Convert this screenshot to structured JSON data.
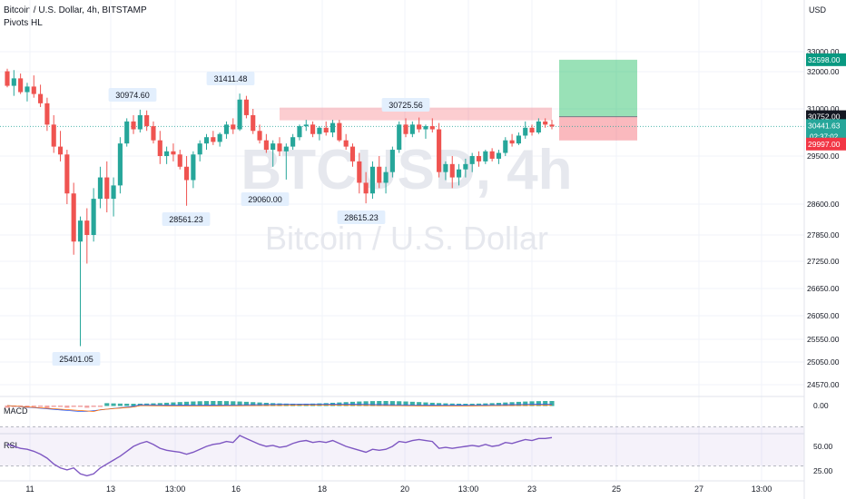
{
  "header": {
    "title": "Bitcoin / U.S. Dollar, 4h, BITSTAMP",
    "indicator": "Pivots HL"
  },
  "watermark": {
    "symbol": "BTCUSD, 4h",
    "name": "Bitcoin / U.S. Dollar"
  },
  "currency": "USD",
  "colors": {
    "up": "#26a69a",
    "down": "#ef5350",
    "macd": "#2962ff",
    "signal": "#ff6d00",
    "rsi": "#7e57c2",
    "profit": "#00b34a",
    "loss": "#f23645"
  },
  "chart_data": {
    "type": "candlestick",
    "y_ticks": [
      33000,
      32000,
      31000,
      29500,
      28600,
      27850,
      27250,
      26650,
      26050,
      25550,
      25050,
      24570
    ],
    "x_ticks": [
      "11",
      "13",
      "13:00",
      "16",
      "18",
      "20",
      "13:00",
      "23",
      "25",
      "27",
      "13:00"
    ],
    "pivots": [
      {
        "label": "30974.60",
        "kind": "high"
      },
      {
        "label": "31411.48",
        "kind": "high"
      },
      {
        "label": "30725.56",
        "kind": "high"
      },
      {
        "label": "28561.23",
        "kind": "low"
      },
      {
        "label": "29060.00",
        "kind": "low"
      },
      {
        "label": "28615.23",
        "kind": "low"
      },
      {
        "label": "25401.05",
        "kind": "low"
      }
    ],
    "price_labels": {
      "target": "32598.00",
      "entry": "30752.00",
      "last": "30441.63",
      "countdown": "02:37:02",
      "stop": "29997.00"
    },
    "candles": [
      {
        "o": 32020,
        "h": 32150,
        "l": 31580,
        "c": 31620
      },
      {
        "o": 31620,
        "h": 32080,
        "l": 31350,
        "c": 31820
      },
      {
        "o": 31820,
        "h": 31950,
        "l": 31400,
        "c": 31450
      },
      {
        "o": 31450,
        "h": 31700,
        "l": 31200,
        "c": 31600
      },
      {
        "o": 31600,
        "h": 31900,
        "l": 31300,
        "c": 31400
      },
      {
        "o": 31400,
        "h": 31650,
        "l": 31050,
        "c": 31150
      },
      {
        "o": 31150,
        "h": 31300,
        "l": 30300,
        "c": 30500
      },
      {
        "o": 30500,
        "h": 30800,
        "l": 29600,
        "c": 29800
      },
      {
        "o": 29800,
        "h": 30300,
        "l": 29400,
        "c": 29550
      },
      {
        "o": 29550,
        "h": 29700,
        "l": 28600,
        "c": 28800
      },
      {
        "o": 28800,
        "h": 29000,
        "l": 27400,
        "c": 27700
      },
      {
        "o": 27700,
        "h": 28300,
        "l": 25401,
        "c": 28200
      },
      {
        "o": 28200,
        "h": 28500,
        "l": 27200,
        "c": 27850
      },
      {
        "o": 27850,
        "h": 28900,
        "l": 27700,
        "c": 28700
      },
      {
        "o": 28700,
        "h": 29300,
        "l": 28500,
        "c": 29100
      },
      {
        "o": 29100,
        "h": 29400,
        "l": 28400,
        "c": 28700
      },
      {
        "o": 28700,
        "h": 29100,
        "l": 28300,
        "c": 28950
      },
      {
        "o": 28950,
        "h": 30100,
        "l": 28800,
        "c": 29900
      },
      {
        "o": 29900,
        "h": 30700,
        "l": 29800,
        "c": 30600
      },
      {
        "o": 30600,
        "h": 30800,
        "l": 30200,
        "c": 30350
      },
      {
        "o": 30350,
        "h": 30974,
        "l": 30250,
        "c": 30800
      },
      {
        "o": 30800,
        "h": 30950,
        "l": 30300,
        "c": 30450
      },
      {
        "o": 30450,
        "h": 30600,
        "l": 29900,
        "c": 30000
      },
      {
        "o": 30000,
        "h": 30300,
        "l": 29350,
        "c": 29500
      },
      {
        "o": 29500,
        "h": 29800,
        "l": 29350,
        "c": 29650
      },
      {
        "o": 29650,
        "h": 29900,
        "l": 29400,
        "c": 29550
      },
      {
        "o": 29550,
        "h": 29700,
        "l": 29250,
        "c": 29300
      },
      {
        "o": 29300,
        "h": 29500,
        "l": 28561,
        "c": 29050
      },
      {
        "o": 29050,
        "h": 29650,
        "l": 28900,
        "c": 29550
      },
      {
        "o": 29550,
        "h": 30000,
        "l": 29400,
        "c": 29900
      },
      {
        "o": 29900,
        "h": 30200,
        "l": 29700,
        "c": 30100
      },
      {
        "o": 30100,
        "h": 30300,
        "l": 29850,
        "c": 29950
      },
      {
        "o": 29950,
        "h": 30250,
        "l": 29800,
        "c": 30200
      },
      {
        "o": 30200,
        "h": 30600,
        "l": 30050,
        "c": 30500
      },
      {
        "o": 30500,
        "h": 30700,
        "l": 30200,
        "c": 30350
      },
      {
        "o": 30350,
        "h": 31411,
        "l": 30300,
        "c": 31250
      },
      {
        "o": 31250,
        "h": 31350,
        "l": 30700,
        "c": 30800
      },
      {
        "o": 30800,
        "h": 31000,
        "l": 30200,
        "c": 30300
      },
      {
        "o": 30300,
        "h": 30500,
        "l": 29900,
        "c": 30000
      },
      {
        "o": 30000,
        "h": 30200,
        "l": 29600,
        "c": 29700
      },
      {
        "o": 29700,
        "h": 30000,
        "l": 29300,
        "c": 29900
      },
      {
        "o": 29900,
        "h": 30100,
        "l": 29500,
        "c": 29650
      },
      {
        "o": 29650,
        "h": 29900,
        "l": 29060,
        "c": 29800
      },
      {
        "o": 29800,
        "h": 30200,
        "l": 29700,
        "c": 30100
      },
      {
        "o": 30100,
        "h": 30500,
        "l": 30000,
        "c": 30450
      },
      {
        "o": 30450,
        "h": 30650,
        "l": 30300,
        "c": 30500
      },
      {
        "o": 30500,
        "h": 30600,
        "l": 30100,
        "c": 30200
      },
      {
        "o": 30200,
        "h": 30450,
        "l": 30000,
        "c": 30400
      },
      {
        "o": 30400,
        "h": 30600,
        "l": 30150,
        "c": 30250
      },
      {
        "o": 30250,
        "h": 30650,
        "l": 30100,
        "c": 30550
      },
      {
        "o": 30550,
        "h": 30650,
        "l": 29950,
        "c": 30000
      },
      {
        "o": 30000,
        "h": 30200,
        "l": 29700,
        "c": 29800
      },
      {
        "o": 29800,
        "h": 29900,
        "l": 29300,
        "c": 29400
      },
      {
        "o": 29400,
        "h": 29600,
        "l": 28800,
        "c": 29000
      },
      {
        "o": 29000,
        "h": 29200,
        "l": 28615,
        "c": 28800
      },
      {
        "o": 28800,
        "h": 29400,
        "l": 28700,
        "c": 29300
      },
      {
        "o": 29300,
        "h": 29500,
        "l": 28900,
        "c": 29000
      },
      {
        "o": 29000,
        "h": 29300,
        "l": 28800,
        "c": 29200
      },
      {
        "o": 29200,
        "h": 29800,
        "l": 29100,
        "c": 29700
      },
      {
        "o": 29700,
        "h": 30600,
        "l": 29600,
        "c": 30500
      },
      {
        "o": 30500,
        "h": 30700,
        "l": 30100,
        "c": 30200
      },
      {
        "o": 30200,
        "h": 30600,
        "l": 30100,
        "c": 30500
      },
      {
        "o": 30500,
        "h": 30725,
        "l": 30250,
        "c": 30350
      },
      {
        "o": 30350,
        "h": 30500,
        "l": 30050,
        "c": 30450
      },
      {
        "o": 30450,
        "h": 30700,
        "l": 30250,
        "c": 30350
      },
      {
        "o": 30350,
        "h": 30550,
        "l": 29100,
        "c": 29200
      },
      {
        "o": 29200,
        "h": 29400,
        "l": 29050,
        "c": 29350
      },
      {
        "o": 29350,
        "h": 29500,
        "l": 28900,
        "c": 29100
      },
      {
        "o": 29100,
        "h": 29350,
        "l": 28950,
        "c": 29250
      },
      {
        "o": 29250,
        "h": 29450,
        "l": 29100,
        "c": 29350
      },
      {
        "o": 29350,
        "h": 29600,
        "l": 29200,
        "c": 29500
      },
      {
        "o": 29500,
        "h": 29650,
        "l": 29300,
        "c": 29400
      },
      {
        "o": 29400,
        "h": 29700,
        "l": 29350,
        "c": 29650
      },
      {
        "o": 29650,
        "h": 29750,
        "l": 29400,
        "c": 29450
      },
      {
        "o": 29450,
        "h": 29700,
        "l": 29350,
        "c": 29600
      },
      {
        "o": 29600,
        "h": 30100,
        "l": 29500,
        "c": 30000
      },
      {
        "o": 30000,
        "h": 30200,
        "l": 29800,
        "c": 29900
      },
      {
        "o": 29900,
        "h": 30250,
        "l": 29850,
        "c": 30150
      },
      {
        "o": 30150,
        "h": 30600,
        "l": 30050,
        "c": 30400
      },
      {
        "o": 30400,
        "h": 30500,
        "l": 30150,
        "c": 30250
      },
      {
        "o": 30250,
        "h": 30700,
        "l": 30200,
        "c": 30600
      },
      {
        "o": 30600,
        "h": 30700,
        "l": 30400,
        "c": 30500
      },
      {
        "o": 30500,
        "h": 30650,
        "l": 30350,
        "c": 30441
      }
    ],
    "macd": {
      "title": "MACD",
      "ticks": [
        "0.00"
      ]
    },
    "rsi": {
      "title": "RSI",
      "ticks": [
        "50.00",
        "25.00"
      ],
      "values": [
        52,
        50,
        48,
        47,
        45,
        42,
        38,
        32,
        28,
        26,
        28,
        22,
        20,
        22,
        28,
        32,
        36,
        40,
        45,
        50,
        53,
        55,
        52,
        48,
        46,
        45,
        44,
        42,
        44,
        47,
        50,
        52,
        53,
        55,
        54,
        62,
        58,
        55,
        52,
        50,
        51,
        49,
        50,
        53,
        55,
        56,
        54,
        55,
        54,
        56,
        53,
        50,
        48,
        46,
        44,
        47,
        46,
        47,
        50,
        55,
        54,
        56,
        57,
        56,
        55,
        48,
        49,
        48,
        49,
        50,
        51,
        50,
        52,
        50,
        51,
        54,
        53,
        55,
        57,
        56,
        58,
        58,
        59
      ]
    }
  }
}
